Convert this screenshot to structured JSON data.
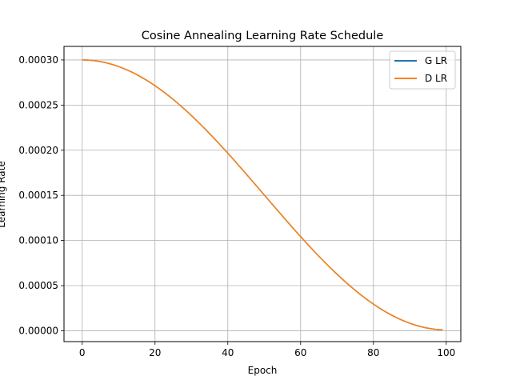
{
  "chart_data": {
    "type": "line",
    "title": "Cosine Annealing Learning Rate Schedule",
    "xlabel": "Epoch",
    "ylabel": "Learning Rate",
    "xlim": [
      -5,
      104
    ],
    "ylim": [
      -1.2e-05,
      0.000315
    ],
    "xticks": [
      0,
      20,
      40,
      60,
      80,
      100
    ],
    "xtick_labels": [
      "0",
      "20",
      "40",
      "60",
      "80",
      "100"
    ],
    "yticks": [
      0,
      5e-05,
      0.0001,
      0.00015,
      0.0002,
      0.00025,
      0.0003
    ],
    "ytick_labels": [
      "0.00000",
      "0.00005",
      "0.00010",
      "0.00015",
      "0.00020",
      "0.00025",
      "0.00030"
    ],
    "grid": true,
    "legend_position": "top-right",
    "schedule": {
      "epochs": 100,
      "eta_max": 0.0003,
      "eta_min": 1e-06
    },
    "series": [
      {
        "name": "G LR",
        "color": "#1f77b4"
      },
      {
        "name": "D LR",
        "color": "#ff7f0e"
      }
    ]
  }
}
